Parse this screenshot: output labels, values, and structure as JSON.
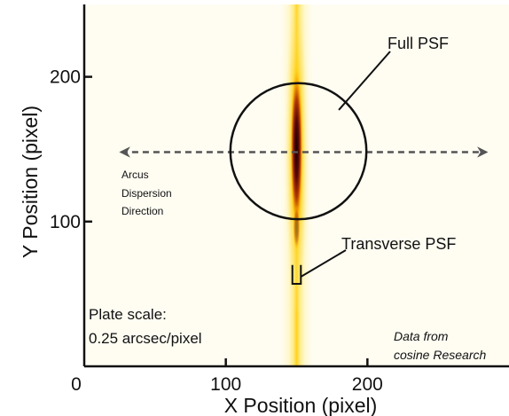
{
  "chart_data": {
    "type": "heatmap",
    "xlabel": "X Position (pixel)",
    "ylabel": "Y Position (pixel)",
    "xlim": [
      0,
      300
    ],
    "ylim": [
      0,
      250
    ],
    "x_ticks": [
      {
        "value": 0,
        "label": "0"
      },
      {
        "value": 100,
        "label": "100"
      },
      {
        "value": 200,
        "label": "200"
      }
    ],
    "y_ticks": [
      {
        "value": 100,
        "label": "100"
      },
      {
        "value": 200,
        "label": "200"
      }
    ],
    "colormap": [
      "#fffdf2",
      "#fff3b0",
      "#ffd21a",
      "#f5a000",
      "#c84a00",
      "#5a0808",
      "#1a0000"
    ],
    "psf": {
      "center_x": 150,
      "center_y": 148,
      "core_half_height": 60,
      "core_half_width": 4
    },
    "annotations": {
      "full_psf": {
        "label": "Full PSF",
        "circle_center": [
          150,
          148
        ],
        "circle_radius": 47
      },
      "transverse_psf": {
        "label": "Transverse PSF",
        "box": {
          "x_range": [
            147,
            153
          ],
          "y_range": [
            57,
            70
          ]
        }
      },
      "dispersion": {
        "lines": [
          "Arcus",
          "Dispersion",
          "Direction"
        ],
        "arrow_y": 148,
        "arrow_x_range": [
          25,
          285
        ],
        "color": "#555555"
      },
      "plate_scale": [
        "Plate scale:",
        "0.25 arcsec/pixel"
      ],
      "credit": [
        "Data from",
        "cosine Research"
      ]
    }
  }
}
